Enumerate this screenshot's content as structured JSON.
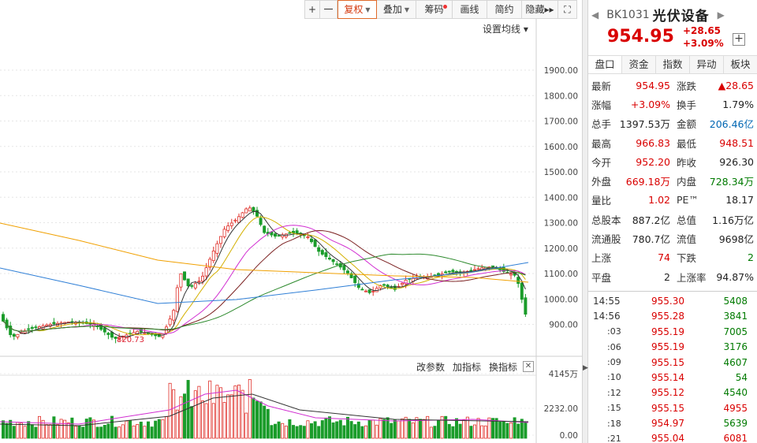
{
  "toolbar": {
    "buttons": [
      {
        "label": "+",
        "w": 20
      },
      {
        "label": "一",
        "w": 22
      },
      {
        "label": "复权",
        "w": 50,
        "active": true,
        "caret": true
      },
      {
        "label": "叠加",
        "w": 50,
        "caret": true
      },
      {
        "label": "筹码",
        "w": 46,
        "dot": true
      },
      {
        "label": "画线",
        "w": 44
      },
      {
        "label": "简约",
        "w": 44
      },
      {
        "label": "隐藏▸▸",
        "w": 46
      },
      {
        "label": "⛶",
        "w": 24
      }
    ],
    "ma_setting": "设置均线 ▾"
  },
  "price_axis": {
    "ticks": [
      "1900.00",
      "1800.00",
      "1700.00",
      "1600.00",
      "1500.00",
      "1400.00",
      "1300.00",
      "1200.00",
      "1100.00",
      "1000.00",
      "900.00"
    ],
    "min_label": "820.73"
  },
  "volume": {
    "max_label": "4145万",
    "mid_label": "2232.00",
    "zero_label": "0.00",
    "buttons": [
      "改参数",
      "加指标",
      "换指标"
    ]
  },
  "stock": {
    "code": "BK1031",
    "name": "光伏设备",
    "price": "954.95",
    "change": "+28.65",
    "change_pct": "+3.09%"
  },
  "side_tabs": [
    "盘口",
    "资金",
    "指数",
    "异动",
    "板块"
  ],
  "quote": [
    {
      "k1": "最新",
      "v1": "954.95",
      "c1": "red",
      "k2": "涨跌",
      "v2": "▲28.65",
      "c2": "red"
    },
    {
      "k1": "涨幅",
      "v1": "+3.09%",
      "c1": "red",
      "k2": "换手",
      "v2": "1.79%",
      "c2": "dark"
    },
    {
      "k1": "总手",
      "v1": "1397.53万",
      "c1": "dark",
      "k2": "金额",
      "v2": "206.46亿",
      "c2": "blue"
    },
    {
      "k1": "最高",
      "v1": "966.83",
      "c1": "red",
      "k2": "最低",
      "v2": "948.51",
      "c2": "red"
    },
    {
      "k1": "今开",
      "v1": "952.20",
      "c1": "red",
      "k2": "昨收",
      "v2": "926.30",
      "c2": "dark"
    },
    {
      "k1": "外盘",
      "v1": "669.18万",
      "c1": "red",
      "k2": "内盘",
      "v2": "728.34万",
      "c2": "green"
    },
    {
      "k1": "量比",
      "v1": "1.02",
      "c1": "red",
      "k2": "PE™",
      "v2": "18.17",
      "c2": "dark"
    },
    {
      "k1": "总股本",
      "v1": "887.2亿",
      "c1": "dark",
      "k2": "总值",
      "v2": "1.16万亿",
      "c2": "dark"
    },
    {
      "k1": "流通股",
      "v1": "780.7亿",
      "c1": "dark",
      "k2": "流值",
      "v2": "9698亿",
      "c2": "dark"
    },
    {
      "k1": "上涨",
      "v1": "74",
      "c1": "red",
      "k2": "下跌",
      "v2": "2",
      "c2": "green"
    },
    {
      "k1": "平盘",
      "v1": "2",
      "c1": "dark",
      "k2": "上涨率",
      "v2": "94.87%",
      "c2": "dark"
    }
  ],
  "ticks": [
    {
      "t": "14:55",
      "p": "955.30",
      "v": "5408",
      "c": "green",
      "sub": false
    },
    {
      "t": "14:56",
      "p": "955.28",
      "v": "3841",
      "c": "green",
      "sub": false
    },
    {
      "t": ":03",
      "p": "955.19",
      "v": "7005",
      "c": "green",
      "sub": true
    },
    {
      "t": ":06",
      "p": "955.19",
      "v": "3176",
      "c": "green",
      "sub": true
    },
    {
      "t": ":09",
      "p": "955.15",
      "v": "4607",
      "c": "green",
      "sub": true
    },
    {
      "t": ":10",
      "p": "955.14",
      "v": "54",
      "c": "green",
      "sub": true
    },
    {
      "t": ":12",
      "p": "955.12",
      "v": "4540",
      "c": "green",
      "sub": true
    },
    {
      "t": ":15",
      "p": "955.15",
      "v": "4955",
      "c": "red",
      "sub": true
    },
    {
      "t": ":18",
      "p": "954.97",
      "v": "5639",
      "c": "green",
      "sub": true
    },
    {
      "t": ":21",
      "p": "955.04",
      "v": "6081",
      "c": "red",
      "sub": true
    }
  ]
}
